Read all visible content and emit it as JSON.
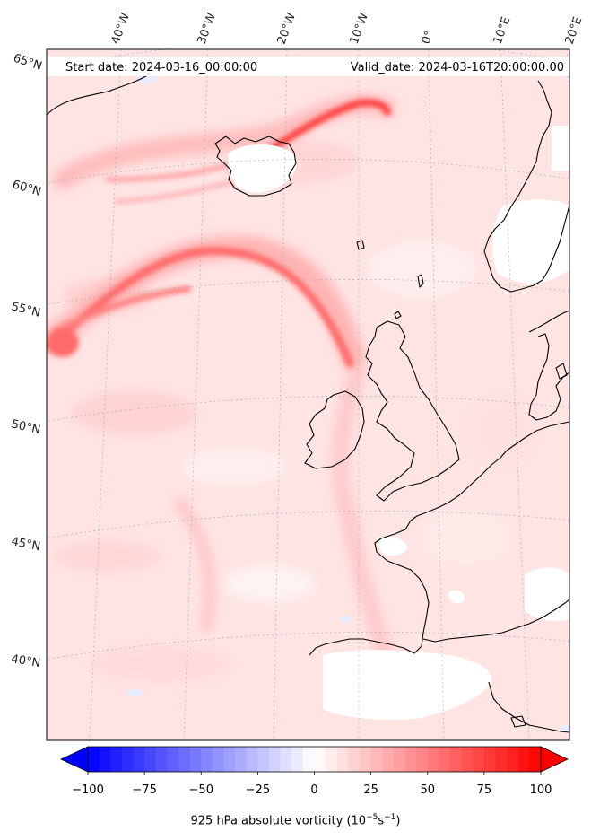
{
  "header": {
    "start_label": "Start date: 2024-03-16_00:00:00",
    "valid_label": "Valid_date: 2024-03-16T20:00:00.00"
  },
  "longitude_labels": [
    "40°W",
    "30°W",
    "20°W",
    "10°W",
    "0°",
    "10°E",
    "20°E"
  ],
  "latitude_labels": [
    "65°N",
    "60°N",
    "55°N",
    "50°N",
    "45°N",
    "40°N"
  ],
  "colorbar": {
    "min": -100,
    "max": 100,
    "ticks": [
      "−100",
      "−75",
      "−50",
      "−25",
      "0",
      "25",
      "50",
      "75",
      "100"
    ],
    "label_prefix": "925 hPa absolute vorticity (10",
    "label_exp1": "−5",
    "label_mid": "s",
    "label_exp2": "−1",
    "label_suffix": ")",
    "low_color": "#0000ff",
    "mid_color": "#ffffff",
    "high_color": "#ff0000"
  },
  "colors": {
    "background_field": "#ffe2e2",
    "coastline": "#000000",
    "gridline": "#999999"
  }
}
